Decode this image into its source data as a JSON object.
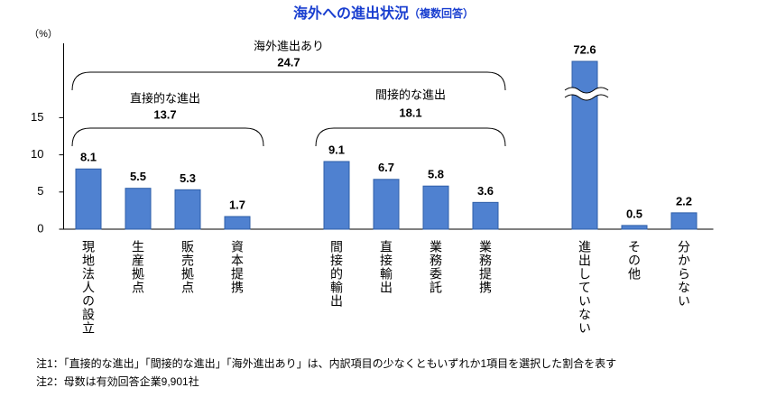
{
  "chart_data": {
    "type": "bar",
    "title": "海外への進出状況",
    "subtitle": "（複数回答）",
    "y_axis_label": "（%）",
    "categories": [
      "現地法人の設立",
      "生産拠点",
      "販売拠点",
      "資本提携",
      null,
      "間接的輸出",
      "直接輸出",
      "業務委託",
      "業務提携",
      null,
      "進出していない",
      "その他",
      "分からない"
    ],
    "values": [
      8.1,
      5.5,
      5.3,
      1.7,
      null,
      9.1,
      6.7,
      5.8,
      3.6,
      null,
      72.6,
      0.5,
      2.2
    ],
    "color": "#4f81d0",
    "ylim": [
      0,
      25
    ],
    "yticks": [
      0,
      5,
      10,
      15
    ],
    "axis_break": true,
    "groups": [
      {
        "label": "海外進出あり",
        "value": 24.7
      },
      {
        "label": "直接的な進出",
        "value": 13.7
      },
      {
        "label": "間接的な進出",
        "value": 18.1
      }
    ],
    "notes": [
      "注1：「直接的な進出」「間接的な進出」「海外進出あり」は、内訳項目の少なくともいずれか1項目を選択した割合を表す",
      "注2：母数は有効回答企業9,901社"
    ]
  }
}
